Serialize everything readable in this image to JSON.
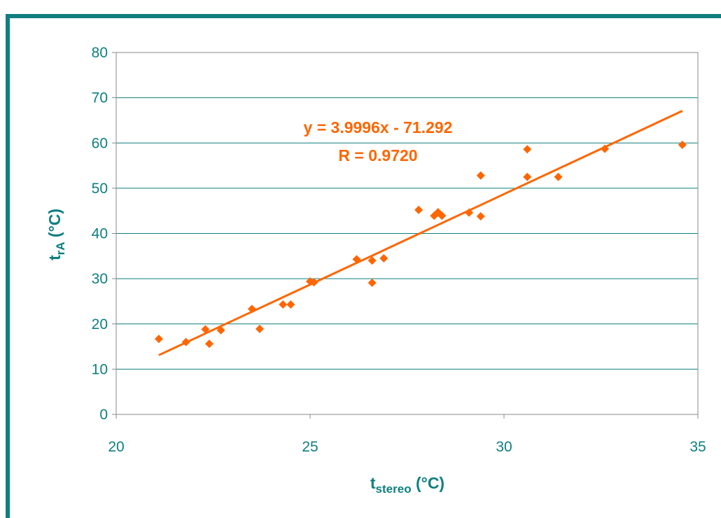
{
  "colors": {
    "frame": "#0f7f7f",
    "axis_text": "#0f7f7f",
    "grid": "#0f7f7f",
    "series": "#ff6600"
  },
  "chart_data": {
    "type": "scatter",
    "title": "",
    "xlabel_main": "t",
    "xlabel_sub": "stereo",
    "xlabel_unit": " (°C)",
    "ylabel_main": "t",
    "ylabel_sub": "rA",
    "ylabel_unit": " (°C)",
    "xlim": [
      20,
      35
    ],
    "ylim": [
      0,
      80
    ],
    "x_ticks": [
      20,
      25,
      30,
      35
    ],
    "y_ticks": [
      0,
      10,
      20,
      30,
      40,
      50,
      60,
      70,
      80
    ],
    "grid": "horizontal",
    "legend": "none",
    "series": [
      {
        "marker": "diamond",
        "points": [
          [
            21.1,
            16.7
          ],
          [
            21.8,
            16.0
          ],
          [
            22.3,
            18.8
          ],
          [
            22.4,
            15.6
          ],
          [
            22.7,
            18.6
          ],
          [
            23.5,
            23.3
          ],
          [
            23.7,
            18.9
          ],
          [
            24.3,
            24.3
          ],
          [
            24.5,
            24.3
          ],
          [
            25.0,
            29.4
          ],
          [
            25.1,
            29.2
          ],
          [
            26.2,
            34.3
          ],
          [
            26.6,
            34.0
          ],
          [
            26.6,
            29.1
          ],
          [
            26.9,
            34.5
          ],
          [
            27.8,
            45.2
          ],
          [
            28.2,
            43.9
          ],
          [
            28.3,
            44.7
          ],
          [
            28.4,
            43.9
          ],
          [
            29.1,
            44.6
          ],
          [
            29.4,
            43.8
          ],
          [
            29.4,
            52.8
          ],
          [
            30.6,
            52.5
          ],
          [
            30.6,
            58.6
          ],
          [
            31.4,
            52.5
          ],
          [
            32.6,
            58.7
          ],
          [
            34.6,
            59.6
          ]
        ]
      }
    ],
    "trendline": {
      "type": "linear",
      "slope": 3.9996,
      "intercept": -71.292,
      "x_range": [
        21.1,
        34.6
      ]
    },
    "annotations": {
      "equation": "y = 3.9996x - 71.292",
      "r_value": "R = 0.9720"
    }
  }
}
